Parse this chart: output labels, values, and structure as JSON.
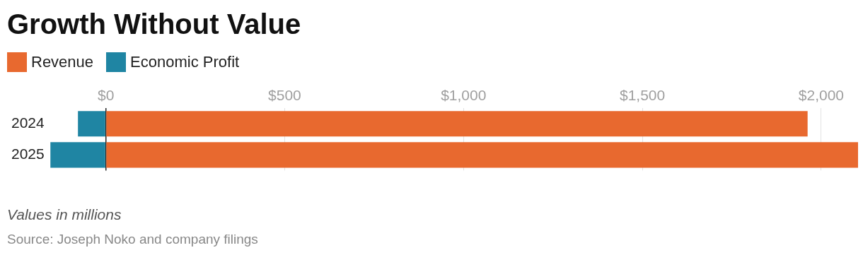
{
  "chart_data": {
    "type": "bar",
    "title": "Growth Without Value",
    "orientation": "horizontal",
    "stacked": true,
    "categories": [
      "2024",
      "2025"
    ],
    "series": [
      {
        "name": "Revenue",
        "color": "#e8692f",
        "values": [
          1962,
          2103
        ]
      },
      {
        "name": "Economic Profit",
        "color": "#1f85a3",
        "values": [
          -78,
          -155
        ]
      }
    ],
    "xlim": [
      -160,
      2105
    ],
    "xticks": [
      {
        "value": 0,
        "label": "$0"
      },
      {
        "value": 500,
        "label": "$500"
      },
      {
        "value": 1000,
        "label": "$1,000"
      },
      {
        "value": 1500,
        "label": "$1,500"
      },
      {
        "value": 2000,
        "label": "$2,000"
      }
    ],
    "grid": "x",
    "legend": "top left",
    "annotations": [
      "Values in millions",
      "Source: Joseph Noko and company filings"
    ]
  }
}
